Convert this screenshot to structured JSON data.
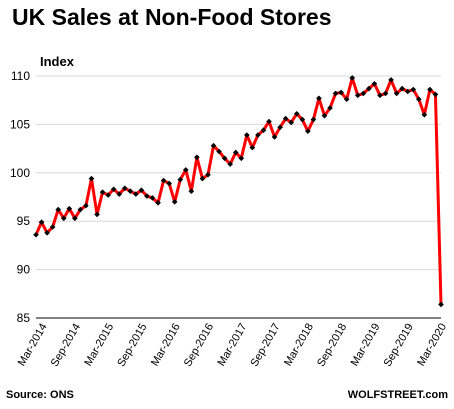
{
  "title": "UK Sales at Non-Food Stores",
  "source": "Source: ONS",
  "site": "WOLFSTREET.com",
  "colors": {
    "line": "#ff0000",
    "marker": "#000000",
    "grid": "#d9d9d9"
  },
  "chart_data": {
    "type": "line",
    "title": "UK Sales at Non-Food Stores",
    "ylabel": "Index",
    "xlabel": "",
    "ylim": [
      85,
      110
    ],
    "yticks": [
      85,
      90,
      95,
      100,
      105,
      110
    ],
    "grid": "horizontal",
    "x_start": "2014-01",
    "xtick_labels": [
      "Mar-2014",
      "Sep-2014",
      "Mar-2015",
      "Sep-2015",
      "Mar-2016",
      "Sep-2016",
      "Mar-2017",
      "Sep-2017",
      "Mar-2018",
      "Sep-2018",
      "Mar-2019",
      "Sep-2019",
      "Mar-2020"
    ],
    "series": [
      {
        "values": [
          93.6,
          94.9,
          93.8,
          94.4,
          96.2,
          95.3,
          96.3,
          95.3,
          96.2,
          96.6,
          99.4,
          95.7,
          98.0,
          97.7,
          98.3,
          97.8,
          98.4,
          98.1,
          97.8,
          98.2,
          97.6,
          97.4,
          96.9,
          99.2,
          98.9,
          97.0,
          99.3,
          100.3,
          98.1,
          101.6,
          99.4,
          99.8,
          102.8,
          102.2,
          101.5,
          100.9,
          102.1,
          101.5,
          103.9,
          102.6,
          103.9,
          104.4,
          105.3,
          103.7,
          104.7,
          105.6,
          105.2,
          106.1,
          105.5,
          104.3,
          105.5,
          107.7,
          105.9,
          106.7,
          108.2,
          108.3,
          107.6,
          109.8,
          108.0,
          108.2,
          108.7,
          109.2,
          108.0,
          108.2,
          109.6,
          108.2,
          108.7,
          108.4,
          108.6,
          107.6,
          106.0,
          108.6,
          108.1,
          86.4
        ]
      }
    ]
  }
}
